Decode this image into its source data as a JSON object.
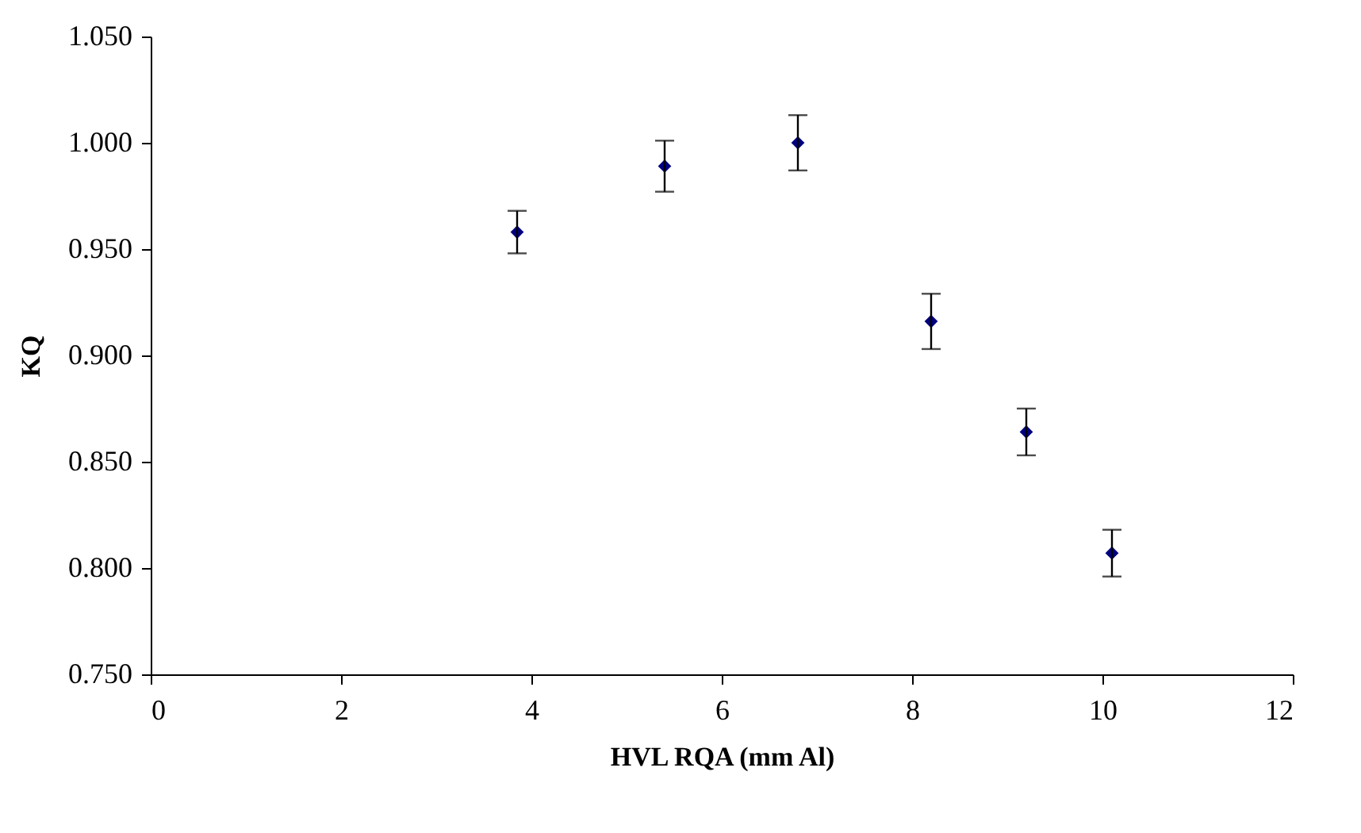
{
  "chart_data": {
    "type": "scatter",
    "xlabel": "HVL RQA (mm Al)",
    "ylabel": "KQ",
    "x": [
      3.85,
      5.4,
      6.8,
      8.2,
      9.2,
      10.1
    ],
    "series": [
      {
        "color": "#000080",
        "values": [
          0.958,
          0.989,
          1.0,
          0.916,
          0.864,
          0.807
        ],
        "errors": [
          0.01,
          0.012,
          0.013,
          0.013,
          0.011,
          0.011
        ]
      }
    ],
    "marker": "diamond",
    "xlim": [
      0,
      12
    ],
    "xticks": [
      0,
      2,
      4,
      6,
      8,
      10,
      12
    ],
    "ylim": [
      0.75,
      1.05
    ],
    "yticks": [
      {
        "value": 0.75,
        "label": "0.750"
      },
      {
        "value": 0.8,
        "label": "0.800"
      },
      {
        "value": 0.85,
        "label": "0.850"
      },
      {
        "value": 0.9,
        "label": "0.900"
      },
      {
        "value": 0.95,
        "label": "0.950"
      },
      {
        "value": 1.0,
        "label": "1.000"
      },
      {
        "value": 1.05,
        "label": "1.050"
      }
    ],
    "grid": false,
    "legend": false
  }
}
